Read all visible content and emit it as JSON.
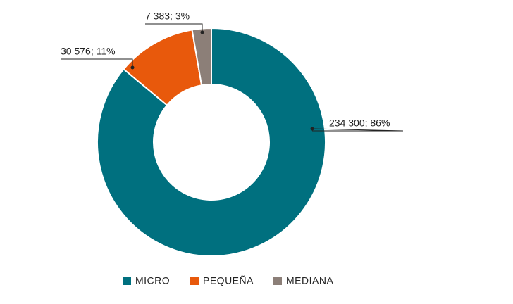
{
  "chart_data": {
    "type": "donut",
    "categories": [
      "MICRO",
      "PEQUEÑA",
      "MEDIANA"
    ],
    "values": [
      234300,
      30576,
      7383
    ],
    "value_labels": [
      "234 300; 86%",
      "30 576; 11%",
      "7 383; 3%"
    ],
    "colors": [
      "#00707f",
      "#e8590c",
      "#8c7f78"
    ]
  }
}
